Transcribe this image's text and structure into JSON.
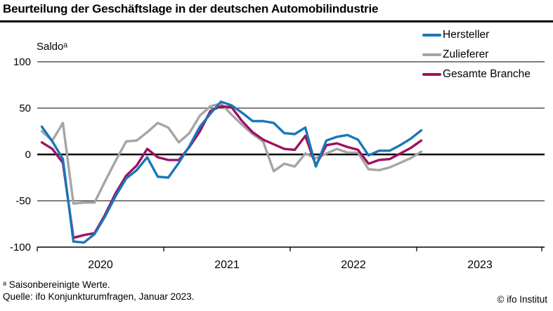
{
  "header": {
    "title": "Beurteilung der Geschäftslage in der deutschen Automobilindustrie"
  },
  "chart": {
    "saldo_label": "Saldoᵃ"
  },
  "footer": {
    "footnote": "ᵃ Saisonbereinigte Werte.",
    "source": "Quelle: ifo Konjunkturumfragen, Januar 2023.",
    "copyright": "© ifo Institut"
  },
  "chart_data": {
    "type": "line",
    "title": "Beurteilung der Geschäftslage in der deutschen Automobilindustrie",
    "ylabel": "Saldoᵃ",
    "ylim": [
      -100,
      100
    ],
    "y_ticks": [
      100,
      50,
      0,
      -50,
      -100
    ],
    "x_year_labels": [
      "2020",
      "2021",
      "2022",
      "2023"
    ],
    "legend_position": "top-right",
    "grid": "horizontal",
    "x": [
      "2020-01",
      "2020-02",
      "2020-03",
      "2020-04",
      "2020-05",
      "2020-06",
      "2020-07",
      "2020-08",
      "2020-09",
      "2020-10",
      "2020-11",
      "2020-12",
      "2021-01",
      "2021-02",
      "2021-03",
      "2021-04",
      "2021-05",
      "2021-06",
      "2021-07",
      "2021-08",
      "2021-09",
      "2021-10",
      "2021-11",
      "2021-12",
      "2022-01",
      "2022-02",
      "2022-03",
      "2022-04",
      "2022-05",
      "2022-06",
      "2022-07",
      "2022-08",
      "2022-09",
      "2022-10",
      "2022-11",
      "2022-12",
      "2023-01"
    ],
    "series": [
      {
        "name": "Hersteller",
        "color": "#1878b9",
        "values": [
          30,
          14,
          -5,
          -94,
          -95,
          -86,
          -67,
          -45,
          -26,
          -17,
          -3,
          -24,
          -25,
          -9,
          9,
          30,
          44,
          57,
          53,
          45,
          36,
          36,
          34,
          23,
          22,
          29,
          -13,
          15,
          19,
          21,
          16,
          -1,
          4,
          4,
          10,
          17,
          26
        ]
      },
      {
        "name": "Zulieferer",
        "color": "#a5a5a5",
        "values": [
          25,
          15,
          34,
          -53,
          -52,
          -52,
          -29,
          -7,
          14,
          15,
          24,
          34,
          29,
          13,
          23,
          42,
          52,
          55,
          43,
          32,
          22,
          14,
          -18,
          -10,
          -13,
          1,
          -4,
          1,
          6,
          2,
          2,
          -16,
          -17,
          -14,
          -9,
          -4,
          3
        ]
      },
      {
        "name": "Gesamte Branche",
        "color": "#9e1161",
        "values": [
          13,
          6,
          -9,
          -90,
          -87,
          -85,
          -65,
          -42,
          -23,
          -12,
          6,
          -3,
          -6,
          -6,
          8,
          25,
          47,
          52,
          51,
          36,
          24,
          16,
          11,
          6,
          5,
          20,
          -12,
          10,
          12,
          8,
          5,
          -10,
          -6,
          -5,
          1,
          7,
          15
        ]
      }
    ]
  }
}
